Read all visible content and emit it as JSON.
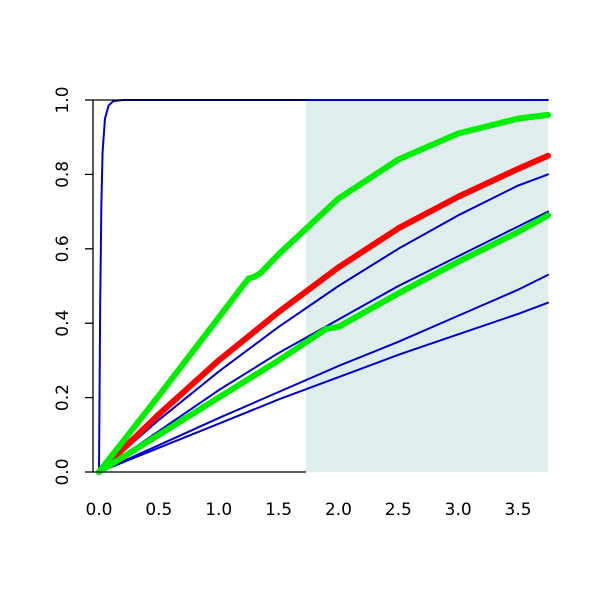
{
  "chart_data": {
    "type": "line",
    "title": "",
    "xlabel": "",
    "ylabel": "",
    "xlim": [
      -0.05,
      3.75
    ],
    "ylim": [
      0,
      1
    ],
    "x_ticks": [
      0.0,
      0.5,
      1.0,
      1.5,
      2.0,
      2.5,
      3.0,
      3.5
    ],
    "x_tick_labels": [
      "0.0",
      "0.5",
      "1.0",
      "1.5",
      "2.0",
      "2.5",
      "3.0",
      "3.5"
    ],
    "y_ticks": [
      0.0,
      0.2,
      0.4,
      0.6,
      0.8,
      1.0
    ],
    "y_tick_labels": [
      "0.0",
      "0.2",
      "0.4",
      "0.6",
      "0.8",
      "1.0"
    ],
    "grid": false,
    "legend": "none",
    "shaded_region": {
      "x_from": 1.73,
      "x_to": 3.75,
      "color": "#e0eded"
    },
    "series": [
      {
        "color": "#0000cc",
        "style": "thin",
        "x": [
          0.0,
          0.01,
          0.02,
          0.03,
          0.05,
          0.08,
          0.12,
          0.2,
          0.5,
          1.0,
          1.5,
          2.0,
          2.5,
          3.0,
          3.5,
          3.75
        ],
        "y": [
          0.0,
          0.45,
          0.72,
          0.86,
          0.95,
          0.985,
          0.997,
          1.0,
          1.0,
          1.0,
          1.0,
          1.0,
          1.0,
          1.0,
          1.0,
          1.0
        ]
      },
      {
        "color": "#0000cc",
        "style": "thin",
        "x": [
          0.0,
          0.5,
          1.0,
          1.5,
          2.0,
          2.5,
          3.0,
          3.5,
          3.75
        ],
        "y": [
          0.0,
          0.14,
          0.27,
          0.39,
          0.5,
          0.6,
          0.69,
          0.77,
          0.8
        ]
      },
      {
        "color": "#0000cc",
        "style": "thin",
        "x": [
          0.0,
          0.5,
          1.0,
          1.5,
          2.0,
          2.5,
          3.0,
          3.5,
          3.75
        ],
        "y": [
          0.0,
          0.11,
          0.22,
          0.32,
          0.41,
          0.5,
          0.58,
          0.66,
          0.7
        ]
      },
      {
        "color": "#0000cc",
        "style": "thin",
        "x": [
          0.0,
          0.5,
          1.0,
          1.5,
          2.0,
          2.5,
          3.0,
          3.5,
          3.75
        ],
        "y": [
          0.0,
          0.072,
          0.145,
          0.215,
          0.285,
          0.35,
          0.42,
          0.49,
          0.53
        ]
      },
      {
        "color": "#0000cc",
        "style": "thin",
        "x": [
          0.0,
          0.5,
          1.0,
          1.5,
          2.0,
          2.5,
          3.0,
          3.5,
          3.75
        ],
        "y": [
          0.0,
          0.065,
          0.13,
          0.195,
          0.255,
          0.315,
          0.37,
          0.425,
          0.455
        ]
      },
      {
        "color": "#ff0000",
        "style": "thick",
        "x": [
          0.0,
          0.5,
          1.0,
          1.5,
          2.0,
          2.5,
          3.0,
          3.5,
          3.75
        ],
        "y": [
          0.0,
          0.155,
          0.3,
          0.43,
          0.55,
          0.655,
          0.74,
          0.815,
          0.85
        ]
      },
      {
        "color": "#00ee00",
        "style": "thick",
        "x": [
          0.0,
          0.5,
          1.0,
          1.2,
          1.25,
          1.3,
          1.35,
          1.5,
          2.0,
          2.5,
          3.0,
          3.5,
          3.75
        ],
        "y": [
          0.0,
          0.205,
          0.415,
          0.5,
          0.52,
          0.525,
          0.535,
          0.585,
          0.735,
          0.84,
          0.91,
          0.95,
          0.96
        ]
      },
      {
        "color": "#00ee00",
        "style": "thick",
        "x": [
          0.0,
          0.5,
          1.0,
          1.5,
          1.9,
          2.0,
          2.5,
          3.0,
          3.5,
          3.75
        ],
        "y": [
          0.0,
          0.1,
          0.2,
          0.3,
          0.385,
          0.39,
          0.48,
          0.565,
          0.645,
          0.69
        ]
      }
    ]
  }
}
